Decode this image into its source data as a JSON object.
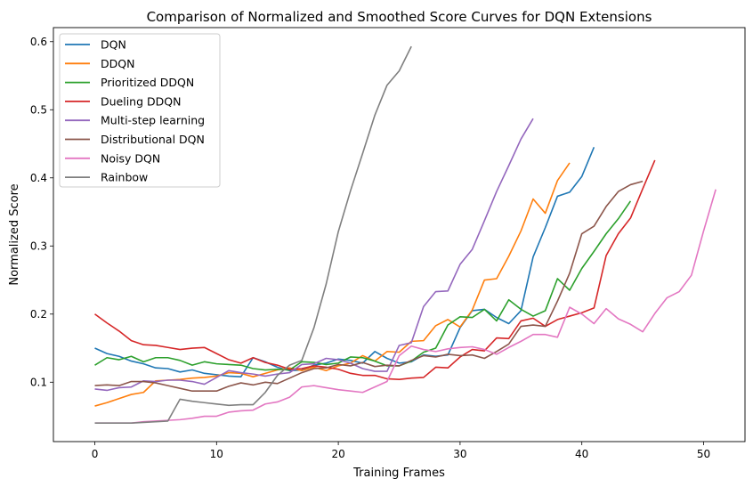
{
  "chart_data": {
    "type": "line",
    "title": "Comparison of Normalized and Smoothed Score Curves for DQN Extensions",
    "xlabel": "Training Frames",
    "ylabel": "Normalized Score",
    "xlim": [
      -3.4,
      53.4
    ],
    "ylim": [
      0.0128,
      0.6206
    ],
    "xticks": [
      0,
      10,
      20,
      30,
      40,
      50
    ],
    "yticks": [
      0.1,
      0.2,
      0.3,
      0.4,
      0.5,
      0.6
    ],
    "xtick_labels": [
      "0",
      "10",
      "20",
      "30",
      "40",
      "50"
    ],
    "ytick_labels": [
      "0.1",
      "0.2",
      "0.3",
      "0.4",
      "0.5",
      "0.6"
    ],
    "grid": false,
    "legend_position": "top-left",
    "series": [
      {
        "name": "DQN",
        "color": "#1f77b4",
        "values": [
          0.15,
          0.142,
          0.138,
          0.131,
          0.127,
          0.121,
          0.12,
          0.115,
          0.118,
          0.113,
          0.111,
          0.109,
          0.108,
          0.136,
          0.13,
          0.122,
          0.117,
          0.118,
          0.125,
          0.128,
          0.134,
          0.132,
          0.128,
          0.145,
          0.135,
          0.128,
          0.13,
          0.14,
          0.138,
          0.14,
          0.18,
          0.205,
          0.207,
          0.195,
          0.186,
          0.205,
          0.284,
          0.327,
          0.373,
          0.379,
          0.402,
          0.445
        ]
      },
      {
        "name": "DDQN",
        "color": "#ff7f0e",
        "values": [
          0.065,
          0.07,
          0.076,
          0.082,
          0.085,
          0.102,
          0.103,
          0.104,
          0.106,
          0.107,
          0.109,
          0.114,
          0.113,
          0.108,
          0.113,
          0.118,
          0.121,
          0.117,
          0.122,
          0.117,
          0.124,
          0.128,
          0.139,
          0.131,
          0.145,
          0.144,
          0.16,
          0.161,
          0.183,
          0.192,
          0.181,
          0.206,
          0.25,
          0.252,
          0.285,
          0.322,
          0.369,
          0.348,
          0.396,
          0.422
        ]
      },
      {
        "name": "Prioritized DDQN",
        "color": "#2ca02c",
        "values": [
          0.125,
          0.136,
          0.133,
          0.138,
          0.13,
          0.136,
          0.136,
          0.132,
          0.125,
          0.13,
          0.127,
          0.126,
          0.125,
          0.12,
          0.118,
          0.119,
          0.118,
          0.13,
          0.129,
          0.126,
          0.128,
          0.137,
          0.136,
          0.131,
          0.124,
          0.124,
          0.131,
          0.144,
          0.15,
          0.184,
          0.196,
          0.195,
          0.207,
          0.19,
          0.221,
          0.207,
          0.197,
          0.205,
          0.252,
          0.235,
          0.267,
          0.292,
          0.318,
          0.34,
          0.366
        ]
      },
      {
        "name": "Dueling DDQN",
        "color": "#d62728",
        "values": [
          0.2,
          0.187,
          0.175,
          0.161,
          0.155,
          0.154,
          0.151,
          0.148,
          0.15,
          0.151,
          0.142,
          0.133,
          0.128,
          0.136,
          0.129,
          0.125,
          0.119,
          0.12,
          0.124,
          0.122,
          0.119,
          0.113,
          0.11,
          0.11,
          0.105,
          0.104,
          0.106,
          0.107,
          0.122,
          0.121,
          0.137,
          0.148,
          0.146,
          0.165,
          0.164,
          0.19,
          0.194,
          0.182,
          0.192,
          0.197,
          0.202,
          0.209,
          0.286,
          0.318,
          0.341,
          0.384,
          0.426
        ]
      },
      {
        "name": "Multi-step learning",
        "color": "#9467bd",
        "values": [
          0.09,
          0.088,
          0.092,
          0.093,
          0.102,
          0.101,
          0.103,
          0.103,
          0.101,
          0.097,
          0.107,
          0.117,
          0.114,
          0.112,
          0.109,
          0.112,
          0.114,
          0.126,
          0.127,
          0.135,
          0.133,
          0.128,
          0.12,
          0.116,
          0.116,
          0.154,
          0.158,
          0.211,
          0.233,
          0.234,
          0.273,
          0.295,
          0.337,
          0.38,
          0.418,
          0.457,
          0.487
        ]
      },
      {
        "name": "Distributional DQN",
        "color": "#8c564b",
        "values": [
          0.095,
          0.096,
          0.095,
          0.101,
          0.101,
          0.099,
          0.095,
          0.091,
          0.087,
          0.087,
          0.087,
          0.094,
          0.099,
          0.096,
          0.1,
          0.098,
          0.106,
          0.114,
          0.12,
          0.121,
          0.126,
          0.124,
          0.129,
          0.123,
          0.125,
          0.124,
          0.132,
          0.139,
          0.137,
          0.141,
          0.139,
          0.14,
          0.135,
          0.145,
          0.156,
          0.182,
          0.184,
          0.182,
          0.219,
          0.26,
          0.318,
          0.329,
          0.358,
          0.38,
          0.39,
          0.395
        ]
      },
      {
        "name": "Noisy DQN",
        "color": "#e377c2",
        "values": [
          0.04,
          0.04,
          0.04,
          0.04,
          0.042,
          0.043,
          0.044,
          0.045,
          0.047,
          0.05,
          0.05,
          0.056,
          0.058,
          0.059,
          0.068,
          0.071,
          0.078,
          0.093,
          0.095,
          0.092,
          0.089,
          0.087,
          0.085,
          0.093,
          0.101,
          0.139,
          0.153,
          0.148,
          0.145,
          0.149,
          0.151,
          0.152,
          0.148,
          0.141,
          0.151,
          0.16,
          0.17,
          0.17,
          0.166,
          0.21,
          0.2,
          0.186,
          0.208,
          0.193,
          0.185,
          0.174,
          0.201,
          0.224,
          0.233,
          0.257,
          0.322,
          0.383
        ]
      },
      {
        "name": "Rainbow",
        "color": "#7f7f7f",
        "values": [
          0.04,
          0.04,
          0.04,
          0.04,
          0.041,
          0.042,
          0.043,
          0.075,
          0.072,
          0.07,
          0.068,
          0.066,
          0.067,
          0.067,
          0.085,
          0.11,
          0.125,
          0.132,
          0.18,
          0.244,
          0.321,
          0.381,
          0.436,
          0.492,
          0.536,
          0.557,
          0.593
        ]
      }
    ]
  }
}
